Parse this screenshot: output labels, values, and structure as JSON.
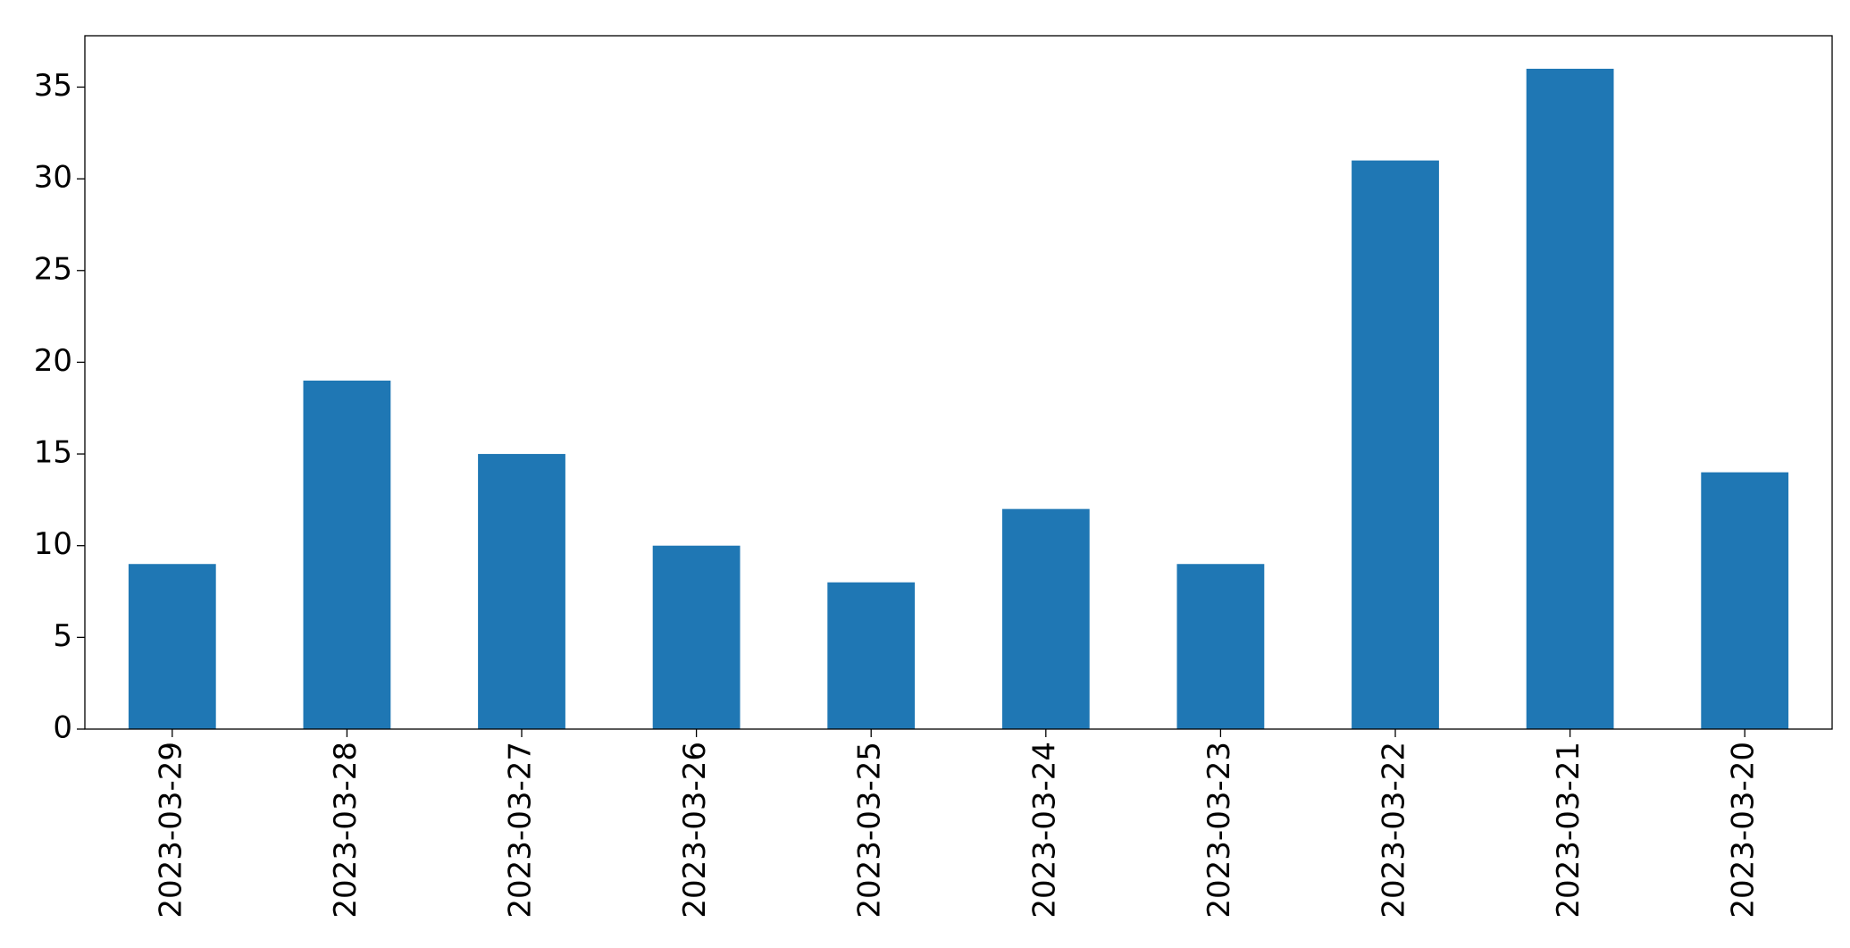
{
  "chart_data": {
    "type": "bar",
    "categories": [
      "2023-03-29",
      "2023-03-28",
      "2023-03-27",
      "2023-03-26",
      "2023-03-25",
      "2023-03-24",
      "2023-03-23",
      "2023-03-22",
      "2023-03-21",
      "2023-03-20"
    ],
    "values": [
      9,
      19,
      15,
      10,
      8,
      12,
      9,
      31,
      36,
      14
    ],
    "color": "#1f77b4",
    "ylim": [
      0,
      37.8
    ],
    "yticks": [
      0,
      5,
      10,
      15,
      20,
      25,
      30,
      35
    ],
    "grid": false
  }
}
